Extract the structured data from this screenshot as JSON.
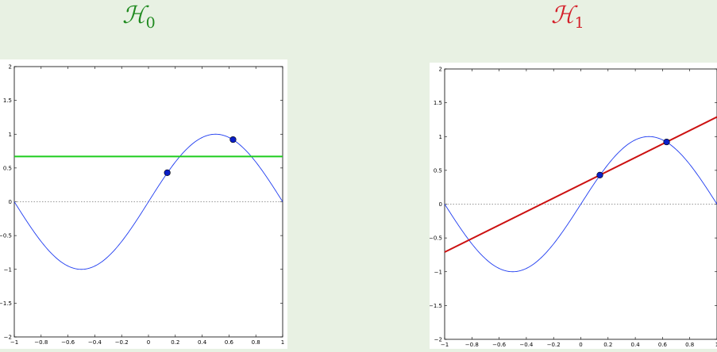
{
  "titles": {
    "left": {
      "main": "ℋ",
      "sub": "0"
    },
    "right": {
      "main": "ℋ",
      "sub": "1"
    }
  },
  "colors": {
    "sine": "#1f3cf0",
    "point": "#0a1ec8",
    "h0_line": "#1dcc1d",
    "h1_line": "#cc1111",
    "h0_title": "#1f8a1f",
    "h1_title": "#d4202a",
    "zero_line": "#777777"
  },
  "chart_data": [
    {
      "type": "line",
      "panel": "left",
      "xlim": [
        -1,
        1
      ],
      "ylim": [
        -2,
        2
      ],
      "xticks": [
        -1,
        -0.8,
        -0.6,
        -0.4,
        -0.2,
        0,
        0.2,
        0.4,
        0.6,
        0.8,
        1
      ],
      "xtick_labels": [
        "−1",
        "−0.8",
        "−0.6",
        "−0.4",
        "−0.2",
        "0",
        "0.2",
        "0.4",
        "0.6",
        "0.8",
        "1"
      ],
      "yticks": [
        -2,
        -1.5,
        -1,
        -0.5,
        0,
        0.5,
        1,
        1.5,
        2
      ],
      "ytick_labels": [
        "−2",
        "−1.5",
        "−1",
        "−0.5",
        "0",
        "0.5",
        "1",
        "1.5",
        "2"
      ],
      "target_function": "sin(pi*x)",
      "points": [
        {
          "x": 0.14,
          "y": 0.43
        },
        {
          "x": 0.63,
          "y": 0.92
        }
      ],
      "hypothesis": {
        "kind": "constant",
        "y": 0.67
      },
      "zero_line": true
    },
    {
      "type": "line",
      "panel": "right",
      "xlim": [
        -1,
        1
      ],
      "ylim": [
        -2,
        2
      ],
      "xticks": [
        -1,
        -0.8,
        -0.6,
        -0.4,
        -0.2,
        0,
        0.2,
        0.4,
        0.6,
        0.8,
        1
      ],
      "xtick_labels": [
        "−1",
        "−0.8",
        "−0.6",
        "−0.4",
        "−0.2",
        "0",
        "0.2",
        "0.4",
        "0.6",
        "0.8",
        "1"
      ],
      "yticks": [
        -2,
        -1.5,
        -1,
        -0.5,
        0,
        0.5,
        1,
        1.5,
        2
      ],
      "ytick_labels": [
        "−2",
        "−1.5",
        "−1",
        "−0.5",
        "0",
        "0.5",
        "1",
        "1.5",
        "2"
      ],
      "target_function": "sin(pi*x)",
      "points": [
        {
          "x": 0.14,
          "y": 0.43
        },
        {
          "x": 0.63,
          "y": 0.92
        }
      ],
      "hypothesis": {
        "kind": "line",
        "slope": 1.0,
        "intercept": 0.29
      },
      "zero_line": true
    }
  ]
}
